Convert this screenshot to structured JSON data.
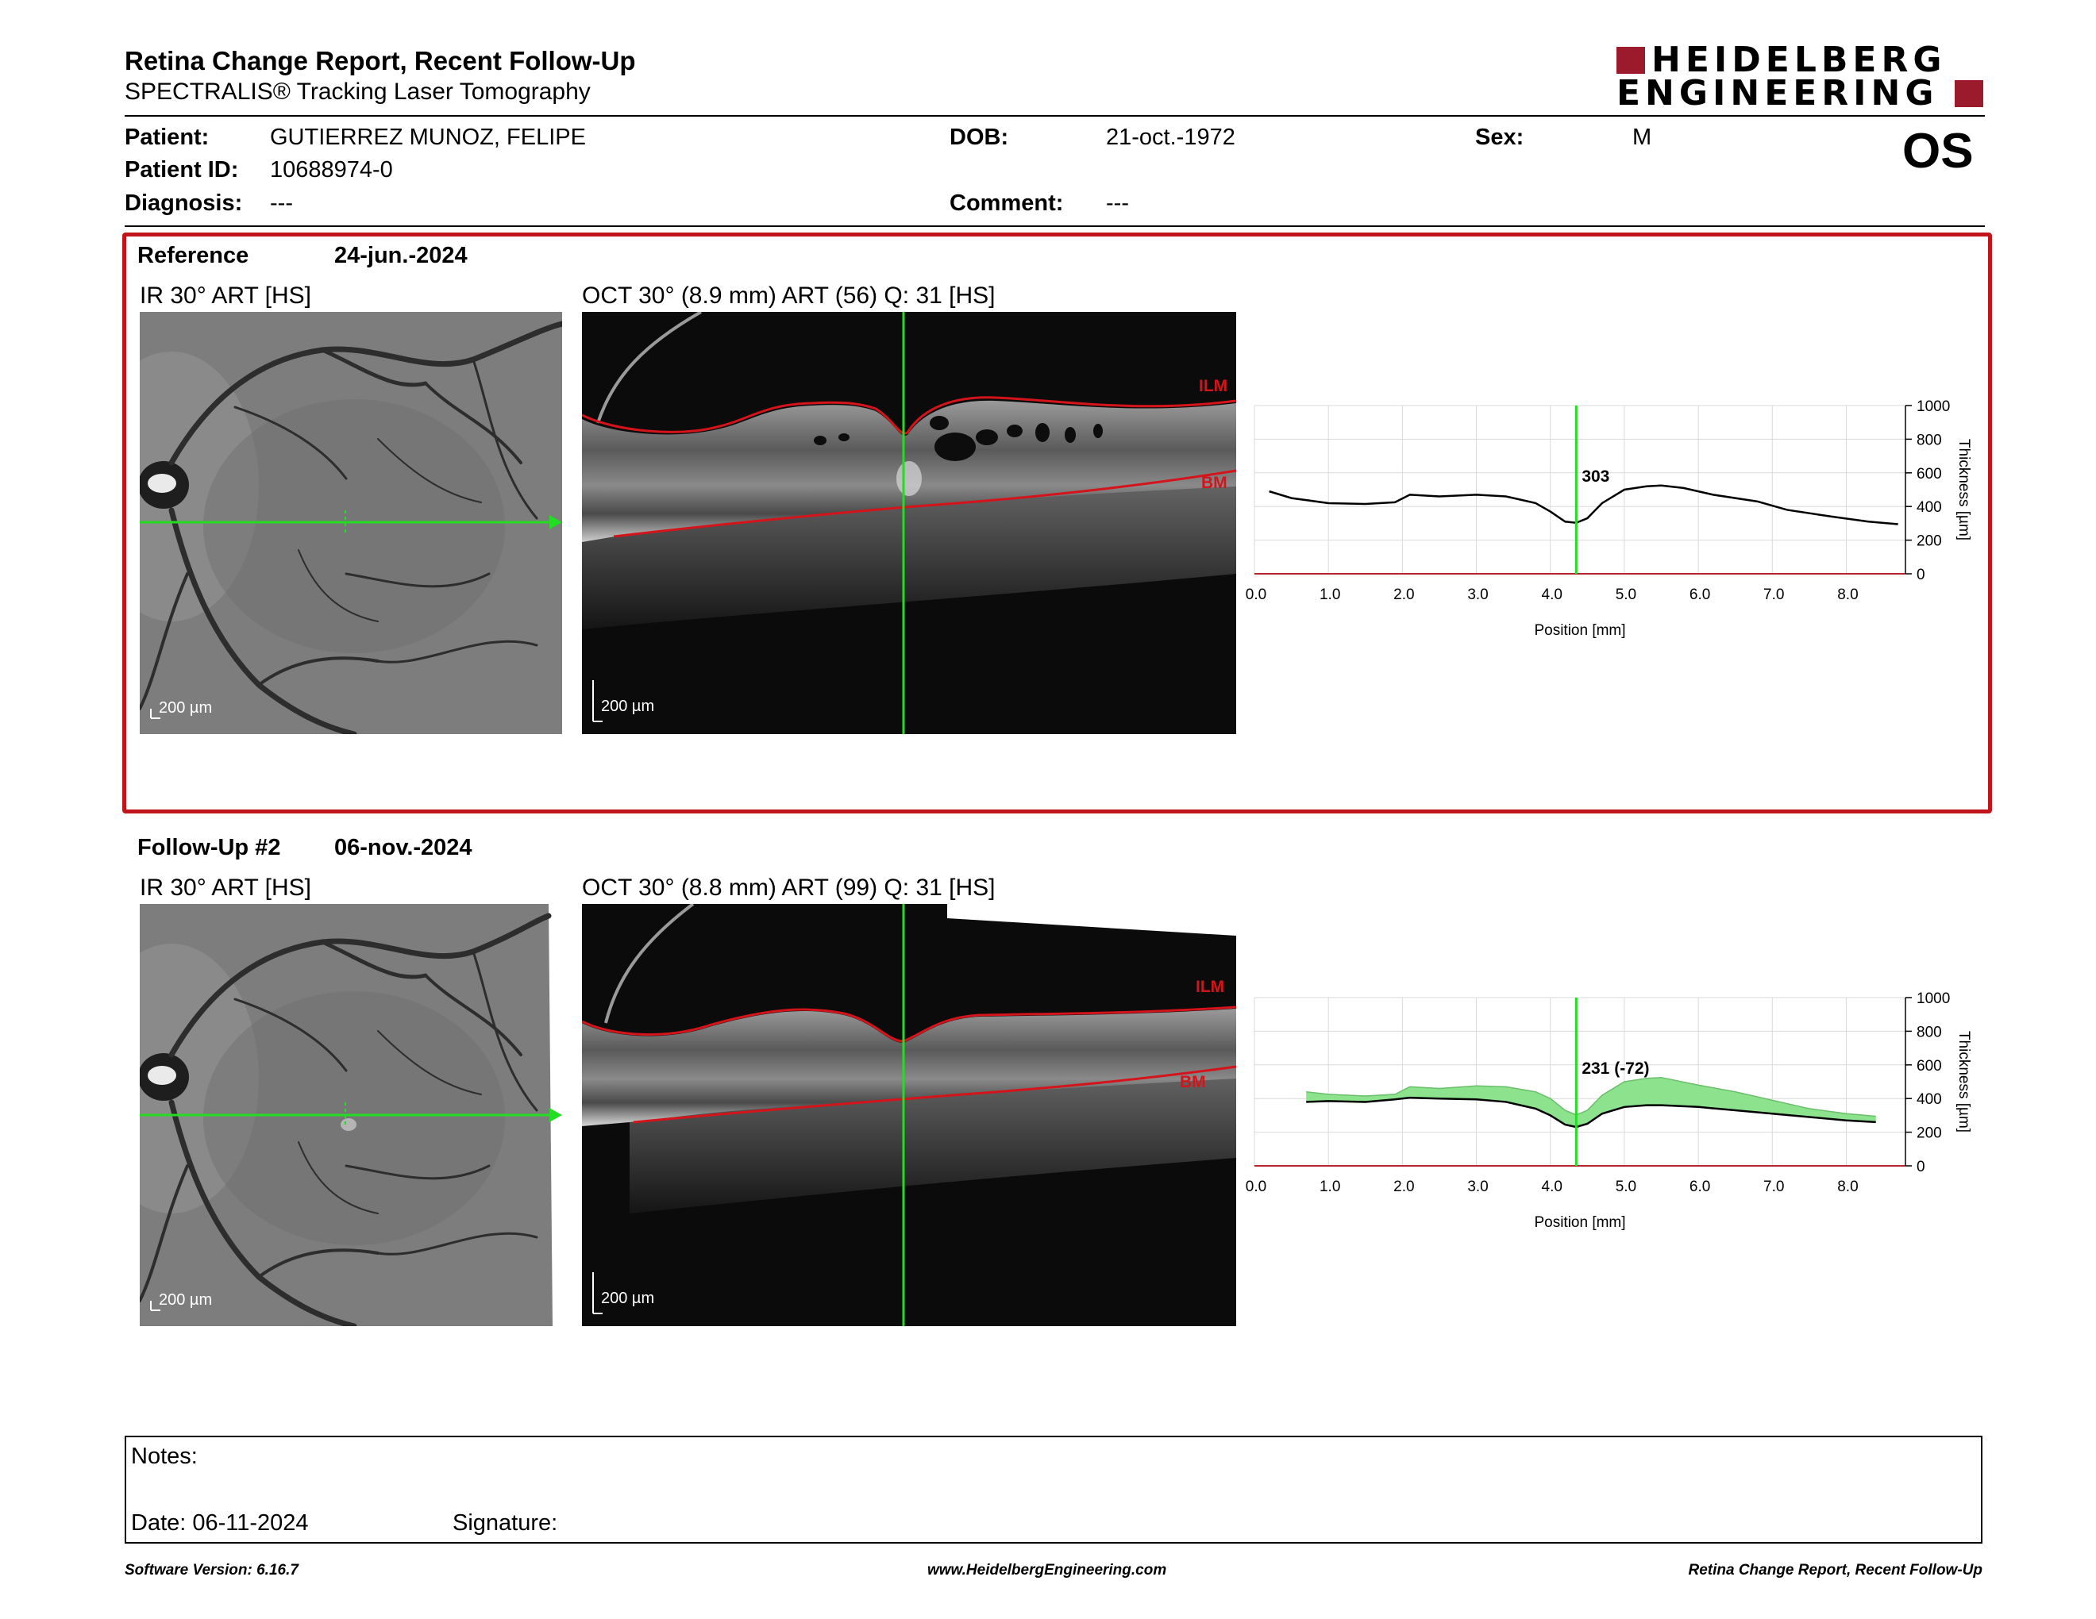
{
  "header": {
    "title": "Retina Change Report, Recent Follow-Up",
    "subtitle": "SPECTRALIS® Tracking Laser Tomography",
    "logo_line1": "HEIDELBERG",
    "logo_line2": "ENGINEERING",
    "brand_color": "#9b1b2c"
  },
  "patient": {
    "name_label": "Patient:",
    "name": "GUTIERREZ MUNOZ, FELIPE",
    "id_label": "Patient ID:",
    "id": "10688974-0",
    "diagnosis_label": "Diagnosis:",
    "diagnosis": "---",
    "dob_label": "DOB:",
    "dob": "21-oct.-1972",
    "comment_label": "Comment:",
    "comment": "---",
    "sex_label": "Sex:",
    "sex": "M",
    "eye": "OS"
  },
  "reference": {
    "label": "Reference",
    "date": "24-jun.-2024",
    "ir_title": "IR 30° ART [HS]",
    "oct_title": "OCT 30° (8.9 mm) ART (56) Q: 31 [HS]",
    "scale": "200 µm",
    "ilm_label": "ILM",
    "bm_label": "BM",
    "frame_color": "#c0151b"
  },
  "followup": {
    "label": "Follow-Up #2",
    "date": "06-nov.-2024",
    "ir_title": "IR 30° ART [HS]",
    "oct_title": "OCT 30° (8.8 mm) ART (99) Q: 31 [HS]",
    "scale": "200 µm",
    "ilm_label": "ILM",
    "bm_label": "BM"
  },
  "chart_data": [
    {
      "type": "line",
      "xlabel": "Position [mm]",
      "ylabel": "Thickness [µm]",
      "xlim": [
        0,
        8.8
      ],
      "ylim": [
        0,
        1000
      ],
      "xticks": [
        "0.0",
        "1.0",
        "2.0",
        "3.0",
        "4.0",
        "5.0",
        "6.0",
        "7.0",
        "8.0"
      ],
      "yticks": [
        "0",
        "200",
        "400",
        "600",
        "800",
        "1000"
      ],
      "grid": true,
      "cursor_x": 4.35,
      "cursor_label": "303",
      "line_color": "#000000",
      "cursor_color": "#22dd22",
      "series": [
        {
          "x": [
            0.2,
            0.5,
            1.0,
            1.5,
            1.9,
            2.1,
            2.5,
            3.0,
            3.4,
            3.8,
            4.0,
            4.2,
            4.35,
            4.5,
            4.7,
            5.0,
            5.3,
            5.5,
            5.8,
            6.2,
            6.8,
            7.2,
            7.8,
            8.3,
            8.7
          ],
          "y": [
            490,
            450,
            420,
            415,
            425,
            470,
            460,
            470,
            460,
            420,
            370,
            310,
            303,
            330,
            420,
            500,
            520,
            525,
            510,
            470,
            430,
            380,
            340,
            310,
            295
          ]
        }
      ]
    },
    {
      "type": "area",
      "xlabel": "Position [mm]",
      "ylabel": "Thickness [µm]",
      "xlim": [
        0,
        8.8
      ],
      "ylim": [
        0,
        1000
      ],
      "xticks": [
        "0.0",
        "1.0",
        "2.0",
        "3.0",
        "4.0",
        "5.0",
        "6.0",
        "7.0",
        "8.0"
      ],
      "yticks": [
        "0",
        "200",
        "400",
        "600",
        "800",
        "1000"
      ],
      "grid": true,
      "cursor_x": 4.35,
      "cursor_label": "231 (-72)",
      "line_color": "#000000",
      "fill_color": "#8de38d",
      "cursor_color": "#22dd22",
      "series": [
        {
          "name": "Follow-Up",
          "x": [
            0.7,
            1.0,
            1.5,
            1.9,
            2.1,
            2.5,
            3.0,
            3.4,
            3.8,
            4.0,
            4.2,
            4.35,
            4.5,
            4.7,
            5.0,
            5.3,
            5.5,
            6.0,
            6.5,
            7.0,
            7.5,
            8.0,
            8.4
          ],
          "y": [
            380,
            385,
            380,
            395,
            405,
            400,
            395,
            380,
            340,
            300,
            245,
            231,
            250,
            310,
            350,
            360,
            360,
            350,
            330,
            310,
            290,
            270,
            260
          ]
        },
        {
          "name": "Reference",
          "x": [
            0.7,
            1.0,
            1.5,
            1.9,
            2.1,
            2.5,
            3.0,
            3.4,
            3.8,
            4.0,
            4.2,
            4.35,
            4.5,
            4.7,
            5.0,
            5.3,
            5.5,
            6.0,
            6.5,
            7.0,
            7.5,
            8.0,
            8.4
          ],
          "y": [
            440,
            425,
            415,
            425,
            470,
            460,
            475,
            470,
            440,
            400,
            330,
            303,
            330,
            420,
            500,
            520,
            525,
            480,
            440,
            390,
            340,
            310,
            295
          ]
        }
      ]
    }
  ],
  "notes": {
    "notes_label": "Notes:",
    "date_label": "Date: 06-11-2024",
    "signature_label": "Signature:"
  },
  "footer": {
    "version": "Software Version: 6.16.7",
    "website": "www.HeidelbergEngineering.com",
    "report_name": "Retina Change Report, Recent Follow-Up"
  }
}
